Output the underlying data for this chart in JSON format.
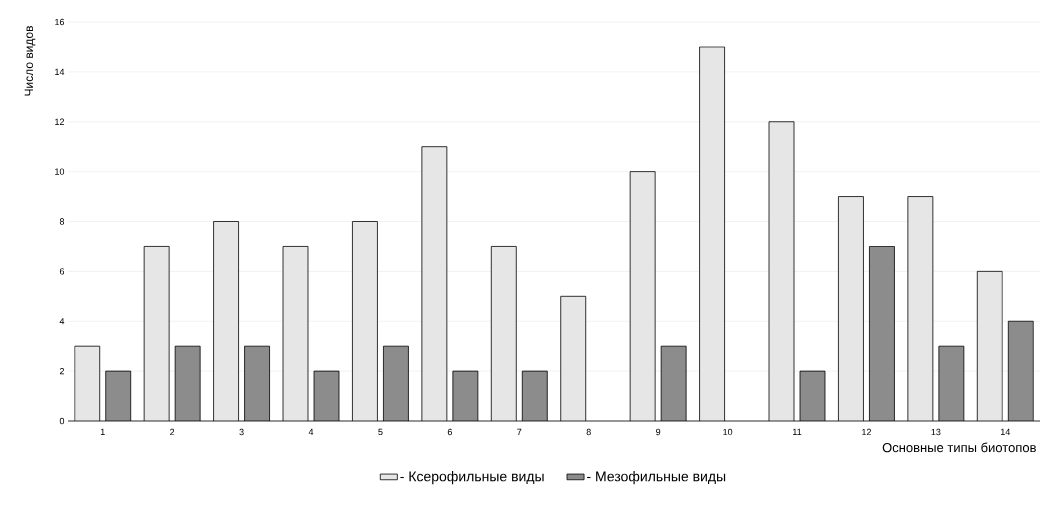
{
  "chart_data": {
    "type": "bar",
    "xlabel": "Основные типы биотопов",
    "ylabel": "Число видов",
    "categories": [
      "1",
      "2",
      "3",
      "4",
      "5",
      "6",
      "7",
      "8",
      "9",
      "10",
      "11",
      "12",
      "13",
      "14"
    ],
    "series": [
      {
        "name": "- Ксерофильные виды",
        "color": "#e6e6e6",
        "values": [
          3,
          7,
          8,
          7,
          8,
          11,
          7,
          5,
          10,
          15,
          12,
          9,
          9,
          6
        ]
      },
      {
        "name": "- Мезофильные виды",
        "color": "#8c8c8c",
        "values": [
          2,
          3,
          3,
          2,
          3,
          2,
          2,
          null,
          3,
          null,
          2,
          7,
          3,
          4
        ]
      }
    ],
    "ylim": [
      0,
      16
    ],
    "yticks": [
      0,
      2,
      4,
      6,
      8,
      10,
      12,
      14,
      16
    ],
    "grid": "y",
    "legend": "bottom"
  }
}
